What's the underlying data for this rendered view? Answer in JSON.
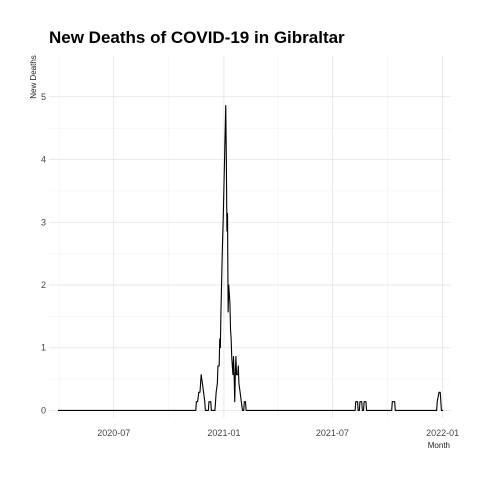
{
  "chart_data": {
    "type": "line",
    "title": "New Deaths of COVID-19 in Gibraltar",
    "xlabel": "Month",
    "ylabel": "New Deaths",
    "ylim": [
      0,
      5
    ],
    "xlim": [
      "2020-03-15",
      "2022-01-15"
    ],
    "grid": true,
    "legend": "none",
    "y_ticks": [
      0,
      1,
      2,
      3,
      4,
      5
    ],
    "x_ticks": [
      {
        "date": "2020-07-01",
        "label": "2020-07"
      },
      {
        "date": "2021-01-01",
        "label": "2021-01"
      },
      {
        "date": "2021-07-01",
        "label": "2021-07"
      },
      {
        "date": "2022-01-01",
        "label": "2022-01"
      }
    ],
    "series": [
      {
        "color": "#000000",
        "points": [
          [
            "2020-03-30",
            0
          ],
          [
            "2020-11-15",
            0
          ],
          [
            "2020-11-16",
            0.14
          ],
          [
            "2020-11-18",
            0.14
          ],
          [
            "2020-11-20",
            0.29
          ],
          [
            "2020-11-22",
            0.29
          ],
          [
            "2020-11-24",
            0.57
          ],
          [
            "2020-11-26",
            0.43
          ],
          [
            "2020-11-28",
            0.29
          ],
          [
            "2020-11-30",
            0.14
          ],
          [
            "2020-12-01",
            0
          ],
          [
            "2020-12-06",
            0
          ],
          [
            "2020-12-07",
            0.14
          ],
          [
            "2020-12-10",
            0.14
          ],
          [
            "2020-12-11",
            0
          ],
          [
            "2020-12-17",
            0
          ],
          [
            "2020-12-19",
            0.29
          ],
          [
            "2020-12-21",
            0.43
          ],
          [
            "2020-12-22",
            0.71
          ],
          [
            "2020-12-24",
            0.71
          ],
          [
            "2020-12-25",
            1.14
          ],
          [
            "2020-12-26",
            1.0
          ],
          [
            "2020-12-27",
            1.57
          ],
          [
            "2020-12-29",
            2.43
          ],
          [
            "2020-12-31",
            3.14
          ],
          [
            "2021-01-02",
            4.0
          ],
          [
            "2021-01-04",
            4.86
          ],
          [
            "2021-01-05",
            4.0
          ],
          [
            "2021-01-06",
            2.86
          ],
          [
            "2021-01-07",
            3.14
          ],
          [
            "2021-01-08",
            1.57
          ],
          [
            "2021-01-09",
            2.0
          ],
          [
            "2021-01-11",
            1.71
          ],
          [
            "2021-01-12",
            1.29
          ],
          [
            "2021-01-13",
            1.14
          ],
          [
            "2021-01-14",
            0.86
          ],
          [
            "2021-01-15",
            0.71
          ],
          [
            "2021-01-16",
            0.57
          ],
          [
            "2021-01-17",
            0.86
          ],
          [
            "2021-01-18",
            0.57
          ],
          [
            "2021-01-19",
            0.14
          ],
          [
            "2021-01-20",
            0.57
          ],
          [
            "2021-01-21",
            0.86
          ],
          [
            "2021-01-22",
            0.57
          ],
          [
            "2021-01-24",
            0.57
          ],
          [
            "2021-01-25",
            0.71
          ],
          [
            "2021-01-26",
            0.43
          ],
          [
            "2021-01-28",
            0.29
          ],
          [
            "2021-01-30",
            0.14
          ],
          [
            "2021-02-01",
            0
          ],
          [
            "2021-02-03",
            0
          ],
          [
            "2021-02-04",
            0.14
          ],
          [
            "2021-02-06",
            0.14
          ],
          [
            "2021-02-07",
            0
          ],
          [
            "2021-08-08",
            0
          ],
          [
            "2021-08-09",
            0.14
          ],
          [
            "2021-08-12",
            0.14
          ],
          [
            "2021-08-13",
            0
          ],
          [
            "2021-08-15",
            0
          ],
          [
            "2021-08-16",
            0.14
          ],
          [
            "2021-08-19",
            0.14
          ],
          [
            "2021-08-20",
            0
          ],
          [
            "2021-08-22",
            0
          ],
          [
            "2021-08-23",
            0.14
          ],
          [
            "2021-08-26",
            0.14
          ],
          [
            "2021-08-27",
            0
          ],
          [
            "2021-10-08",
            0
          ],
          [
            "2021-10-09",
            0.14
          ],
          [
            "2021-10-13",
            0.14
          ],
          [
            "2021-10-14",
            0
          ],
          [
            "2021-12-22",
            0
          ],
          [
            "2021-12-23",
            0.14
          ],
          [
            "2021-12-26",
            0.29
          ],
          [
            "2021-12-28",
            0.29
          ],
          [
            "2021-12-30",
            0
          ],
          [
            "2022-01-02",
            0
          ]
        ]
      }
    ]
  }
}
